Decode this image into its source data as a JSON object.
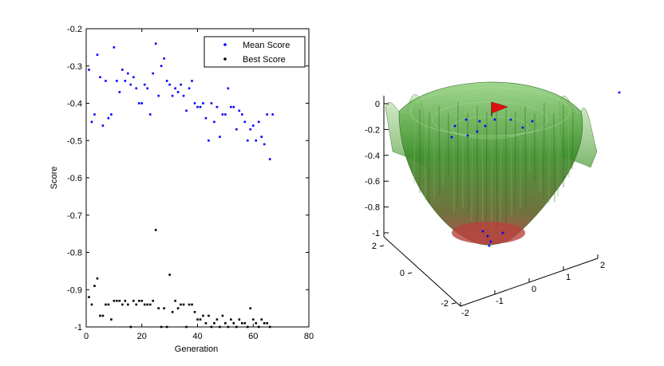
{
  "chart_data": [
    {
      "type": "scatter",
      "title": "",
      "xlabel": "Generation",
      "ylabel": "Score",
      "xlim": [
        0,
        80
      ],
      "ylim": [
        -1,
        -0.2
      ],
      "xticks": [
        "0",
        "20",
        "40",
        "60",
        "80"
      ],
      "yticks": [
        "-0.2",
        "-0.3",
        "-0.4",
        "-0.5",
        "-0.6",
        "-0.7",
        "-0.8",
        "-0.9",
        "-1"
      ],
      "grid": false,
      "legend_position": "top-right",
      "series": [
        {
          "name": "Mean Score",
          "color": "#0000ff",
          "x": [
            1,
            2,
            3,
            4,
            5,
            6,
            7,
            8,
            9,
            10,
            11,
            12,
            13,
            14,
            15,
            16,
            17,
            18,
            19,
            20,
            21,
            22,
            23,
            24,
            25,
            26,
            27,
            28,
            29,
            30,
            31,
            32,
            33,
            34,
            35,
            36,
            37,
            38,
            39,
            40,
            41,
            42,
            43,
            44,
            45,
            46,
            47,
            48,
            49,
            50,
            51,
            52,
            53,
            54,
            55,
            56,
            57,
            58,
            59,
            60,
            61,
            62,
            63,
            64,
            65,
            66,
            67
          ],
          "y": [
            -0.31,
            -0.45,
            -0.43,
            -0.27,
            -0.33,
            -0.46,
            -0.34,
            -0.44,
            -0.43,
            -0.25,
            -0.34,
            -0.37,
            -0.31,
            -0.34,
            -0.32,
            -0.35,
            -0.33,
            -0.36,
            -0.4,
            -0.4,
            -0.35,
            -0.36,
            -0.43,
            -0.32,
            -0.24,
            -0.38,
            -0.3,
            -0.28,
            -0.34,
            -0.35,
            -0.38,
            -0.36,
            -0.37,
            -0.35,
            -0.38,
            -0.42,
            -0.36,
            -0.34,
            -0.4,
            -0.41,
            -0.41,
            -0.4,
            -0.44,
            -0.5,
            -0.4,
            -0.45,
            -0.41,
            -0.49,
            -0.43,
            -0.43,
            -0.36,
            -0.41,
            -0.41,
            -0.47,
            -0.42,
            -0.43,
            -0.45,
            -0.5,
            -0.47,
            -0.46,
            -0.5,
            -0.45,
            -0.49,
            -0.51,
            -0.43,
            -0.55,
            -0.43
          ]
        },
        {
          "name": "Best Score",
          "color": "#000000",
          "x": [
            1,
            2,
            3,
            4,
            5,
            6,
            7,
            8,
            9,
            10,
            11,
            12,
            13,
            14,
            15,
            16,
            17,
            18,
            19,
            20,
            21,
            22,
            23,
            24,
            25,
            26,
            27,
            28,
            29,
            30,
            31,
            32,
            33,
            34,
            35,
            36,
            37,
            38,
            39,
            40,
            41,
            42,
            43,
            44,
            45,
            46,
            47,
            48,
            49,
            50,
            51,
            52,
            53,
            54,
            55,
            56,
            57,
            58,
            59,
            60,
            61,
            62,
            63,
            64,
            65,
            66
          ],
          "y": [
            -0.92,
            -0.94,
            -0.89,
            -0.87,
            -0.97,
            -0.97,
            -0.94,
            -0.94,
            -0.98,
            -0.93,
            -0.93,
            -0.93,
            -0.94,
            -0.93,
            -0.94,
            -1.0,
            -0.93,
            -0.94,
            -0.93,
            -0.93,
            -0.94,
            -0.94,
            -0.94,
            -0.93,
            -0.74,
            -0.95,
            -1.0,
            -0.95,
            -1.0,
            -0.86,
            -0.96,
            -0.93,
            -0.95,
            -0.94,
            -0.94,
            -1.0,
            -0.94,
            -0.94,
            -0.96,
            -0.98,
            -0.98,
            -0.97,
            -0.99,
            -0.97,
            -1.0,
            -0.99,
            -0.98,
            -1.0,
            -0.97,
            -0.99,
            -1.0,
            -0.98,
            -0.99,
            -1.0,
            -0.98,
            -0.99,
            -0.99,
            -1.0,
            -0.95,
            -0.98,
            -0.99,
            -1.0,
            -0.98,
            -0.99,
            -0.99,
            -1.0
          ]
        }
      ]
    },
    {
      "type": "surface3d",
      "title": "",
      "xlim": [
        -2,
        2
      ],
      "ylim": [
        -2,
        2
      ],
      "zlim": [
        -1,
        0
      ],
      "xticks": [
        "-2",
        "-1",
        "0",
        "1",
        "2"
      ],
      "yticks": [
        "-2",
        "0",
        "2"
      ],
      "zticks": [
        "0",
        "-0.2",
        "-0.4",
        "-0.6",
        "-0.8",
        "-1"
      ],
      "marker_label": "red-flag",
      "point_color": "#0000ff",
      "surface_colors": {
        "top": "#4a9a2f",
        "bottom": "#a8403a"
      }
    }
  ]
}
